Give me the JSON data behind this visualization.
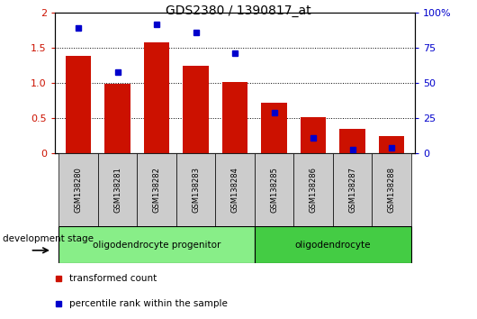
{
  "title": "GDS2380 / 1390817_at",
  "samples": [
    "GSM138280",
    "GSM138281",
    "GSM138282",
    "GSM138283",
    "GSM138284",
    "GSM138285",
    "GSM138286",
    "GSM138287",
    "GSM138288"
  ],
  "red_values": [
    1.38,
    0.99,
    1.58,
    1.24,
    1.01,
    0.72,
    0.51,
    0.35,
    0.24
  ],
  "blue_percentile": [
    89,
    58,
    92,
    86,
    71.5,
    29,
    11,
    2.5,
    3.5
  ],
  "left_ylim": [
    0,
    2
  ],
  "right_ylim": [
    0,
    100
  ],
  "left_yticks": [
    0,
    0.5,
    1.0,
    1.5,
    2
  ],
  "right_yticks": [
    0,
    25,
    50,
    75,
    100
  ],
  "right_yticklabels": [
    "0",
    "25",
    "50",
    "75",
    "100%"
  ],
  "bar_color": "#cc1100",
  "dot_color": "#0000cc",
  "groups": [
    {
      "label": "oligodendrocyte progenitor",
      "start": 0,
      "end": 5,
      "color": "#88ee88"
    },
    {
      "label": "oligodendrocyte",
      "start": 5,
      "end": 9,
      "color": "#44cc44"
    }
  ],
  "xlabel_stage": "development stage",
  "legend_red": "transformed count",
  "legend_blue": "percentile rank within the sample"
}
